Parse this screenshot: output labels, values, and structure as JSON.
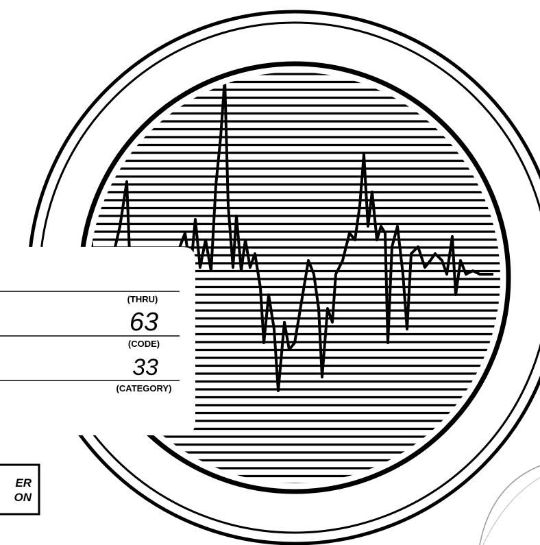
{
  "form": {
    "thru_label": "(THRU)",
    "thru_value": "63",
    "code_label": "(CODE)",
    "code_value": "33",
    "category_label": "(CATEGORY)"
  },
  "badge": {
    "line1": "ER",
    "line2": "ON"
  }
}
